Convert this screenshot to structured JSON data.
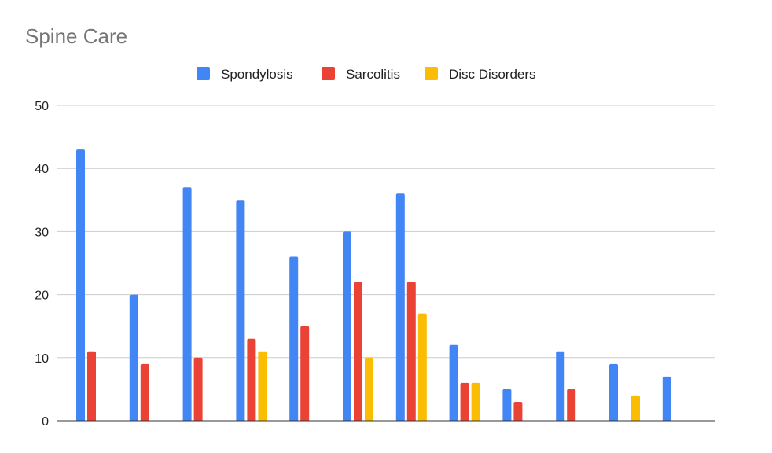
{
  "chart_data": {
    "type": "bar",
    "title": "Spine Care",
    "xlabel": "",
    "ylabel": "",
    "ylim": [
      0,
      50
    ],
    "yticks": [
      0,
      10,
      20,
      30,
      40,
      50
    ],
    "grid": true,
    "legend_position": "top-center",
    "categories": [
      "",
      "",
      "",
      "",
      "",
      "",
      "",
      "",
      "",
      "",
      "",
      ""
    ],
    "series": [
      {
        "name": "Spondylosis",
        "color": "#4285F4",
        "values": [
          43,
          20,
          37,
          35,
          26,
          30,
          36,
          12,
          5,
          11,
          9,
          7
        ]
      },
      {
        "name": "Sarcolitis",
        "color": "#EA4335",
        "values": [
          11,
          9,
          10,
          13,
          15,
          22,
          22,
          6,
          3,
          5,
          0,
          0
        ]
      },
      {
        "name": "Disc Disorders",
        "color": "#FBBC04",
        "values": [
          0,
          0,
          0,
          11,
          0,
          10,
          17,
          6,
          0,
          0,
          4,
          0
        ]
      }
    ]
  }
}
